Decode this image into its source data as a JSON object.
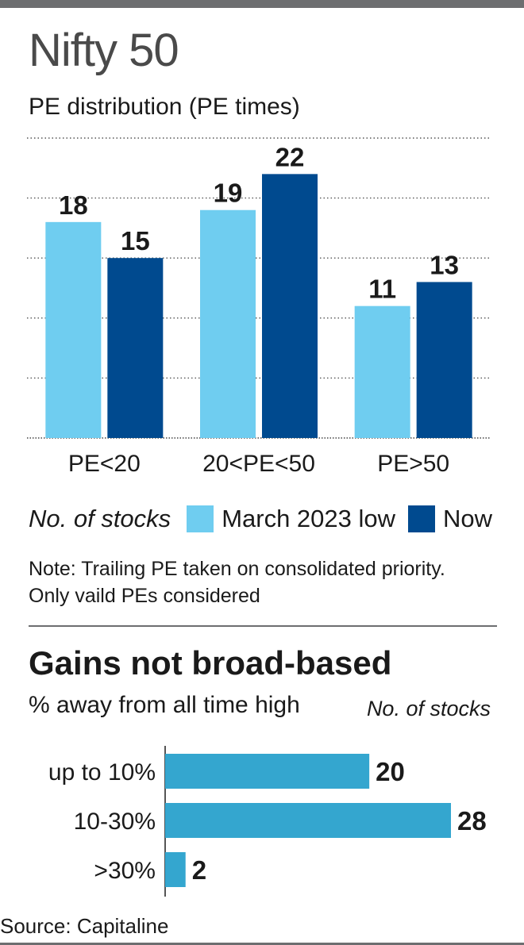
{
  "chart_data": [
    {
      "type": "bar",
      "title": "Nifty 50",
      "subtitle": "PE distribution (PE times)",
      "categories": [
        "PE<20",
        "20<PE<50",
        "PE>50"
      ],
      "series": [
        {
          "name": "March 2023 low",
          "values": [
            18,
            19,
            11
          ],
          "color": "#6fcdf0"
        },
        {
          "name": "Now",
          "values": [
            15,
            22,
            13
          ],
          "color": "#004a8f"
        }
      ],
      "legend_label": "No. of stocks",
      "ylim": [
        0,
        25
      ],
      "grid": true,
      "note_lines": [
        "Note: Trailing PE taken on consolidated priority.",
        "Only vaild PEs considered"
      ]
    },
    {
      "type": "bar",
      "orientation": "horizontal",
      "title": "Gains not broad-based",
      "subtitle": "% away from all time high",
      "value_label": "No. of stocks",
      "categories": [
        "up to 10%",
        "10-30%",
        ">30%"
      ],
      "values": [
        20,
        28,
        2
      ],
      "color": "#34a6cf",
      "xlim": [
        0,
        28
      ]
    }
  ],
  "source": "Source: Capitaline"
}
